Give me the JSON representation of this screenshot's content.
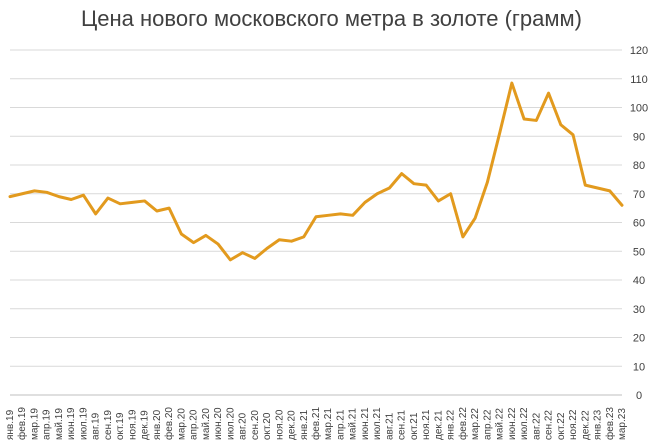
{
  "chart_data": {
    "type": "line",
    "title": "Цена нового московского метра в золоте (грамм)",
    "xlabel": "",
    "ylabel": "",
    "ylim": [
      0,
      120
    ],
    "ytick_step": 10,
    "y_axis_side": "right",
    "grid": "horizontal",
    "legend": "none",
    "colors": {
      "line": "#E29A1E",
      "grid": "#d9d9d9",
      "text": "#404040"
    },
    "categories": [
      "янв.19",
      "фев.19",
      "мар.19",
      "апр.19",
      "май.19",
      "июн.19",
      "июл.19",
      "авг.19",
      "сен.19",
      "окт.19",
      "ноя.19",
      "дек.19",
      "янв.20",
      "фев.20",
      "мар.20",
      "апр.20",
      "май.20",
      "июн.20",
      "июл.20",
      "авг.20",
      "сен.20",
      "окт.20",
      "ноя.20",
      "дек.20",
      "янв.21",
      "фев.21",
      "мар.21",
      "апр.21",
      "май.21",
      "июн.21",
      "июл.21",
      "авг.21",
      "сен.21",
      "окт.21",
      "ноя.21",
      "дек.21",
      "янв.22",
      "фев.22",
      "мар.22",
      "апр.22",
      "май.22",
      "июн.22",
      "июл.22",
      "авг.22",
      "сен.22",
      "окт.22",
      "ноя.22",
      "дек.22",
      "янв.23",
      "фев.23",
      "мар.23"
    ],
    "series": [
      {
        "values": [
          69,
          70,
          71,
          70.5,
          69,
          68,
          69.5,
          63,
          68.5,
          66.5,
          67,
          67.5,
          64,
          65,
          56,
          53,
          55.5,
          52.5,
          47,
          49.5,
          47.5,
          51,
          54,
          53.5,
          55,
          62,
          62.5,
          63,
          62.5,
          67,
          70,
          72,
          77,
          73.5,
          73,
          67.5,
          70,
          55,
          61.5,
          74,
          91,
          108.5,
          96,
          95.5,
          105,
          94,
          90.5,
          73,
          72,
          71,
          66
        ]
      }
    ]
  }
}
